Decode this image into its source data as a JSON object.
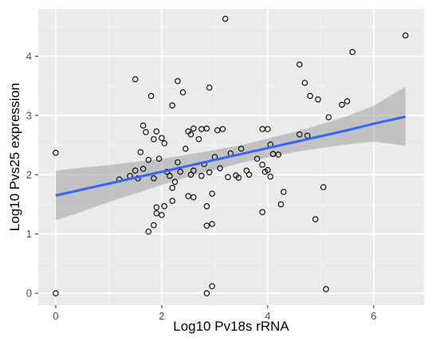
{
  "chart_data": {
    "type": "scatter",
    "title": "",
    "xlabel": "Log10 Pv18s rRNA",
    "ylabel": "Log10 Pvs25 expression",
    "xlim": [
      -0.33,
      6.95
    ],
    "ylim": [
      -0.2,
      4.8
    ],
    "x_ticks": [
      0,
      2,
      4,
      6
    ],
    "y_ticks": [
      0,
      1,
      2,
      3,
      4
    ],
    "x_tick_labels": [
      "0",
      "2",
      "4",
      "6"
    ],
    "y_tick_labels": [
      "0",
      "1",
      "2",
      "3",
      "4"
    ],
    "grid": true,
    "legend": "none",
    "colors": {
      "panel_background": "#ebebeb",
      "grid_major": "#ffffff",
      "grid_minor": "#f5f5f5",
      "points": "#000000",
      "fit_line": "#3366ff",
      "confidence_band": "#999999"
    },
    "points": {
      "x": [
        0.0,
        0.0,
        3.2,
        6.6,
        5.6,
        4.6,
        1.5,
        1.8,
        2.3,
        2.9,
        2.4,
        4.7,
        4.8,
        5.4,
        5.5,
        4.95,
        5.15,
        1.65,
        1.9,
        2.2,
        2.6,
        2.75,
        2.85,
        3.05,
        3.15,
        3.9,
        4.0,
        1.7,
        1.85,
        2.0,
        2.05,
        2.5,
        2.55,
        1.6,
        1.95,
        2.7,
        3.3,
        4.05,
        4.1,
        4.6,
        4.75,
        1.75,
        2.3,
        2.45,
        2.8,
        3.0,
        3.5,
        3.8,
        4.2,
        1.2,
        1.4,
        1.55,
        1.65,
        2.1,
        2.35,
        2.6,
        3.1,
        3.6,
        3.9,
        4.0,
        3.95,
        2.15,
        2.75,
        3.4,
        3.65,
        4.05,
        1.5,
        1.85,
        2.25,
        2.55,
        2.9,
        3.25,
        3.45,
        4.3,
        5.05,
        2.2,
        2.5,
        1.9,
        2.2,
        2.6,
        2.95,
        4.25,
        1.9,
        2.05,
        2.85,
        3.9,
        1.85,
        2.0,
        2.95,
        4.9,
        1.75,
        2.85,
        2.95,
        2.85,
        5.1
      ],
      "y": [
        2.37,
        0.0,
        4.63,
        4.35,
        4.07,
        3.86,
        3.61,
        3.33,
        3.58,
        3.47,
        3.39,
        3.55,
        3.33,
        3.18,
        3.24,
        3.27,
        2.97,
        2.83,
        2.73,
        3.17,
        2.78,
        2.77,
        2.78,
        2.75,
        2.77,
        2.77,
        2.77,
        2.72,
        2.6,
        2.62,
        2.53,
        2.73,
        2.68,
        2.38,
        2.27,
        2.6,
        2.36,
        2.51,
        2.35,
        2.68,
        2.66,
        2.25,
        2.21,
        2.44,
        2.18,
        2.3,
        2.44,
        2.27,
        2.34,
        1.92,
        1.98,
        1.94,
        2.1,
        2.05,
        2.05,
        2.07,
        2.11,
        2.07,
        2.17,
        2.08,
        2.05,
        1.98,
        1.98,
        1.99,
        2.0,
        1.97,
        2.07,
        1.94,
        1.88,
        2.0,
        2.04,
        1.96,
        1.95,
        1.71,
        1.79,
        1.78,
        1.64,
        1.45,
        1.56,
        1.62,
        1.68,
        1.5,
        1.35,
        1.47,
        1.47,
        1.37,
        1.15,
        1.32,
        1.17,
        1.25,
        1.04,
        0.0,
        0.12,
        1.14,
        0.07
      ]
    },
    "fit": {
      "method": "linear",
      "x": [
        0.0,
        0.5,
        1.0,
        1.5,
        2.0,
        2.5,
        3.0,
        3.5,
        4.0,
        4.5,
        5.0,
        5.5,
        6.0,
        6.6
      ],
      "y": [
        1.65,
        1.75,
        1.85,
        1.95,
        2.05,
        2.15,
        2.25,
        2.35,
        2.45,
        2.55,
        2.65,
        2.75,
        2.86,
        2.98
      ],
      "ymin": [
        1.23,
        1.38,
        1.54,
        1.68,
        1.83,
        1.96,
        2.08,
        2.2,
        2.29,
        2.38,
        2.45,
        2.51,
        2.56,
        2.49
      ],
      "ymax": [
        2.07,
        2.12,
        2.16,
        2.22,
        2.27,
        2.34,
        2.42,
        2.5,
        2.61,
        2.72,
        2.85,
        2.99,
        3.16,
        3.49
      ]
    }
  }
}
